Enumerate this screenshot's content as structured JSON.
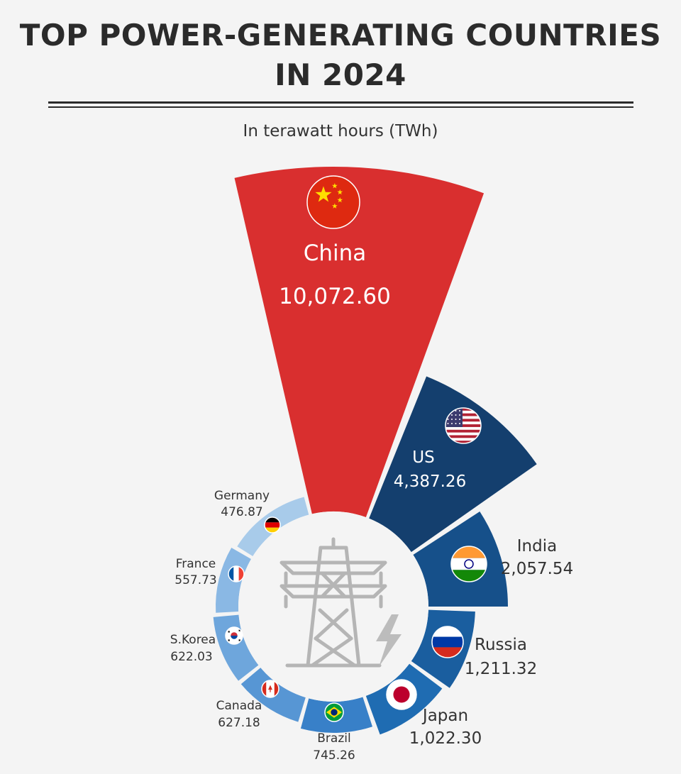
{
  "header": {
    "title_line1": "TOP POWER-GENERATING COUNTRIES",
    "title_line2": "IN 2024",
    "subtitle": "In terawatt hours (TWh)"
  },
  "chart_data": {
    "type": "polar-area",
    "title": "TOP POWER-GENERATING COUNTRIES IN 2024",
    "subtitle": "In terawatt hours (TWh)",
    "unit": "TWh",
    "series": [
      {
        "country": "China",
        "label": "China",
        "value_label": "10,072.60",
        "value": 10072.6,
        "flag": "china-flag-icon",
        "color": "#d92f2f"
      },
      {
        "country": "US",
        "label": "US",
        "value_label": "4,387.26",
        "value": 4387.26,
        "flag": "us-flag-icon",
        "color": "#143f6e"
      },
      {
        "country": "India",
        "label": "India",
        "value_label": "2,057.54",
        "value": 2057.54,
        "flag": "india-flag-icon",
        "color": "#16508a"
      },
      {
        "country": "Russia",
        "label": "Russia",
        "value_label": "1,211.32",
        "value": 1211.32,
        "flag": "russia-flag-icon",
        "color": "#1a5e9f"
      },
      {
        "country": "Japan",
        "label": "Japan",
        "value_label": "1,022.30",
        "value": 1022.3,
        "flag": "japan-flag-icon",
        "color": "#1f6cb2"
      },
      {
        "country": "Brazil",
        "label": "Brazil",
        "value_label": "745.26",
        "value": 745.26,
        "flag": "brazil-flag-icon",
        "color": "#3880c8"
      },
      {
        "country": "Canada",
        "label": "Canada",
        "value_label": "627.18",
        "value": 627.18,
        "flag": "canada-flag-icon",
        "color": "#5796d4"
      },
      {
        "country": "S.Korea",
        "label": "S.Korea",
        "value_label": "622.03",
        "value": 622.03,
        "flag": "south-korea-flag-icon",
        "color": "#6ea6dc"
      },
      {
        "country": "France",
        "label": "France",
        "value_label": "557.73",
        "value": 557.73,
        "flag": "france-flag-icon",
        "color": "#8ab8e4"
      },
      {
        "country": "Germany",
        "label": "Germany",
        "value_label": "476.87",
        "value": 476.87,
        "flag": "germany-flag-icon",
        "color": "#a8cbea"
      }
    ],
    "center_icons": [
      "transmission-tower-icon",
      "lightning-bolt-icon"
    ],
    "legend": "none",
    "grid": false
  }
}
